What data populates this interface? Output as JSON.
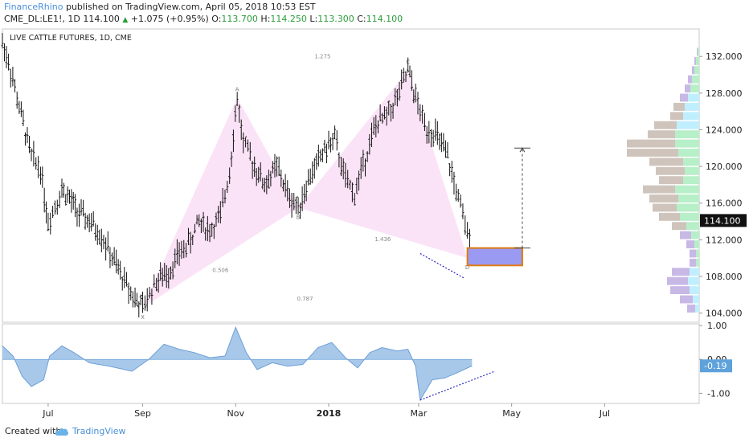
{
  "header": {
    "publisher": "FinanceRhino",
    "published_text": "published on TradingView.com, April 05, 2018 10:53 EST",
    "symbol": "CME_DL:LE1!, 1D",
    "last": "114.100",
    "change": "+1.075 (+0.95%)",
    "o_label": "O:",
    "o_value": "113.700",
    "h_label": "H:",
    "h_value": "114.250",
    "l_label": "L:",
    "l_value": "113.300",
    "c_label": "C:",
    "c_value": "114.100"
  },
  "footer": {
    "created_with": "Created with",
    "brand": "TradingView"
  },
  "colors": {
    "pattern_fill": "#fbe0f6",
    "target_box_fill": "#9a9af2",
    "target_box_border": "#e07a14",
    "volume_green": "#b7efc8",
    "volume_cyan": "#bfefff",
    "volume_grey": "#cfc4bc",
    "volume_purple": "#c8b8e6",
    "oscillator_fill": "#a8c8ea",
    "oscillator_line": "#6c9fd6",
    "trend_line": "#2a2ac8",
    "brand_blue": "#4a90d9"
  },
  "chart_data": {
    "type": "candlestick",
    "title": "LIVE CATTLE FUTURES, 1D, CME",
    "x_ticks": [
      "Jul",
      "Sep",
      "Nov",
      "2018",
      "Mar",
      "May",
      "Jul"
    ],
    "y_ticks": [
      "132.000",
      "128.000",
      "124.000",
      "120.000",
      "116.000",
      "112.000",
      "108.000",
      "104.000"
    ],
    "ylim": [
      103,
      135
    ],
    "last_price": "114.100",
    "price_path": [
      [
        "2017-06-01",
        133.5
      ],
      [
        "2017-06-05",
        131.5
      ],
      [
        "2017-06-12",
        126.5
      ],
      [
        "2017-06-20",
        121.0
      ],
      [
        "2017-06-26",
        119.8
      ],
      [
        "2017-07-01",
        114.0
      ],
      [
        "2017-07-10",
        117.5
      ],
      [
        "2017-07-15",
        116.5
      ],
      [
        "2017-07-20",
        115.0
      ],
      [
        "2017-07-28",
        114.0
      ],
      [
        "2017-08-05",
        112.5
      ],
      [
        "2017-08-12",
        110.0
      ],
      [
        "2017-08-20",
        107.5
      ],
      [
        "2017-08-27",
        105.5
      ],
      [
        "2017-09-01",
        104.6
      ],
      [
        "2017-09-10",
        107.5
      ],
      [
        "2017-09-18",
        108.5
      ],
      [
        "2017-09-25",
        110.5
      ],
      [
        "2017-10-01",
        111.5
      ],
      [
        "2017-10-08",
        114.0
      ],
      [
        "2017-10-15",
        113.0
      ],
      [
        "2017-10-22",
        114.5
      ],
      [
        "2017-10-28",
        119.5
      ],
      [
        "2017-11-02",
        127.5
      ],
      [
        "2017-11-06",
        122.5
      ],
      [
        "2017-11-12",
        120.5
      ],
      [
        "2017-11-20",
        118.0
      ],
      [
        "2017-11-28",
        120.0
      ],
      [
        "2017-12-05",
        117.0
      ],
      [
        "2017-12-12",
        115.5
      ],
      [
        "2017-12-20",
        119.0
      ],
      [
        "2017-12-28",
        121.5
      ],
      [
        "2018-01-05",
        123.0
      ],
      [
        "2018-01-12",
        118.5
      ],
      [
        "2018-01-18",
        117.0
      ],
      [
        "2018-01-25",
        121.0
      ],
      [
        "2018-02-01",
        124.5
      ],
      [
        "2018-02-08",
        125.5
      ],
      [
        "2018-02-15",
        127.5
      ],
      [
        "2018-02-22",
        130.5
      ],
      [
        "2018-02-27",
        127.5
      ],
      [
        "2018-03-05",
        124.5
      ],
      [
        "2018-03-12",
        123.5
      ],
      [
        "2018-03-20",
        121.0
      ],
      [
        "2018-03-27",
        116.5
      ],
      [
        "2018-04-02",
        112.5
      ],
      [
        "2018-04-05",
        114.1
      ]
    ],
    "harmonic_pattern": {
      "points": {
        "X": [
          "2017-09-01",
          104.6
        ],
        "A": [
          "2017-11-02",
          127.5
        ],
        "B": [
          "2017-12-12",
          115.5
        ],
        "C": [
          "2018-02-22",
          130.5
        ],
        "D": [
          "2018-04-02",
          110.0
        ]
      },
      "ratios": {
        "XB": "0.506",
        "AC": "1.275",
        "BD": "1.436",
        "XD": "0.787"
      },
      "target_box": {
        "top": 111.1,
        "bottom": 109.2,
        "start": "2018-04-02",
        "end": "2018-05-08"
      },
      "projection": {
        "from": 111.1,
        "to": 122.0,
        "date": "2018-05-08"
      },
      "divergence_line": {
        "from": [
          "2018-03-02",
          110.5
        ],
        "to": [
          "2018-03-31",
          107.8
        ]
      }
    },
    "volume_profile": {
      "buckets": [
        132.5,
        131.5,
        130.5,
        129.5,
        128.5,
        127.5,
        126.5,
        125.5,
        124.5,
        123.5,
        122.5,
        121.5,
        120.5,
        119.5,
        118.5,
        117.5,
        116.5,
        115.5,
        114.5,
        113.5,
        112.5,
        111.5,
        110.5,
        109.5,
        108.5,
        107.5,
        106.5,
        105.5,
        104.5
      ],
      "up_volume": [
        2,
        4,
        6,
        9,
        11,
        14,
        18,
        20,
        28,
        30,
        30,
        26,
        20,
        18,
        20,
        30,
        26,
        28,
        24,
        16,
        10,
        6,
        4,
        4,
        12,
        14,
        12,
        8,
        5
      ],
      "down_volume": [
        1,
        2,
        3,
        5,
        7,
        10,
        14,
        16,
        28,
        34,
        60,
        64,
        42,
        36,
        30,
        40,
        36,
        30,
        26,
        18,
        14,
        10,
        8,
        8,
        22,
        26,
        24,
        16,
        10
      ]
    },
    "oscillator": {
      "y_ticks": [
        "1.00",
        "0.00",
        "-1.00"
      ],
      "ylim": [
        -1.3,
        1.05
      ],
      "current": "-0.19",
      "values": [
        [
          "2017-06-01",
          0.4
        ],
        [
          "2017-06-08",
          0.1
        ],
        [
          "2017-06-14",
          -0.5
        ],
        [
          "2017-06-20",
          -0.8
        ],
        [
          "2017-06-28",
          -0.6
        ],
        [
          "2017-07-02",
          0.1
        ],
        [
          "2017-07-10",
          0.4
        ],
        [
          "2017-07-18",
          0.2
        ],
        [
          "2017-07-28",
          -0.1
        ],
        [
          "2017-08-10",
          -0.2
        ],
        [
          "2017-08-25",
          -0.35
        ],
        [
          "2017-09-05",
          0.0
        ],
        [
          "2017-09-15",
          0.45
        ],
        [
          "2017-09-25",
          0.3
        ],
        [
          "2017-10-05",
          0.2
        ],
        [
          "2017-10-15",
          0.05
        ],
        [
          "2017-10-25",
          0.1
        ],
        [
          "2017-11-01",
          0.95
        ],
        [
          "2017-11-08",
          0.2
        ],
        [
          "2017-11-15",
          -0.3
        ],
        [
          "2017-11-25",
          -0.1
        ],
        [
          "2017-12-05",
          -0.2
        ],
        [
          "2017-12-15",
          -0.15
        ],
        [
          "2017-12-25",
          0.35
        ],
        [
          "2018-01-03",
          0.5
        ],
        [
          "2018-01-12",
          0.05
        ],
        [
          "2018-01-20",
          -0.25
        ],
        [
          "2018-01-28",
          0.2
        ],
        [
          "2018-02-05",
          0.35
        ],
        [
          "2018-02-15",
          0.25
        ],
        [
          "2018-02-22",
          0.3
        ],
        [
          "2018-02-27",
          -0.2
        ],
        [
          "2018-03-02",
          -1.2
        ],
        [
          "2018-03-10",
          -0.6
        ],
        [
          "2018-03-18",
          -0.55
        ],
        [
          "2018-03-26",
          -0.4
        ],
        [
          "2018-04-05",
          -0.19
        ]
      ],
      "divergence_line": {
        "from": [
          "2018-03-02",
          -1.2
        ],
        "to": [
          "2018-04-20",
          -0.35
        ]
      }
    }
  }
}
